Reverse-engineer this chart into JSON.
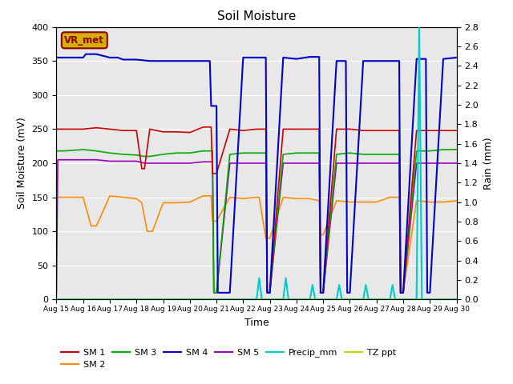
{
  "title": "Soil Moisture",
  "xlabel": "Time",
  "ylabel_left": "Soil Moisture (mV)",
  "ylabel_right": "Rain (mm)",
  "ylim_left": [
    0,
    400
  ],
  "ylim_right": [
    0.0,
    2.8
  ],
  "yticks_left": [
    0,
    50,
    100,
    150,
    200,
    250,
    300,
    350,
    400
  ],
  "yticks_right": [
    0.0,
    0.2,
    0.4,
    0.6,
    0.8,
    1.0,
    1.2,
    1.4,
    1.6,
    1.8,
    2.0,
    2.2,
    2.4,
    2.6,
    2.8
  ],
  "xtick_labels": [
    "Aug 15",
    "Aug 16",
    "Aug 17",
    "Aug 18",
    "Aug 19",
    "Aug 20",
    "Aug 21",
    "Aug 22",
    "Aug 23",
    "Aug 24",
    "Aug 25",
    "Aug 26",
    "Aug 27",
    "Aug 28",
    "Aug 29",
    "Aug 30"
  ],
  "background_color": "#e8e8e8",
  "legend_box_text": "VR_met",
  "legend_box_facecolor": "#d4b000",
  "legend_box_edgecolor": "#8B0000",
  "legend_box_textcolor": "#8B0000",
  "series": {
    "SM1": {
      "color": "#cc0000",
      "label": "SM 1",
      "x": [
        15.0,
        15.3,
        16.0,
        16.5,
        17.0,
        17.5,
        18.0,
        18.2,
        18.3,
        18.5,
        19.0,
        19.5,
        20.0,
        20.5,
        20.8,
        20.85,
        21.0,
        21.5,
        22.0,
        22.5,
        22.85,
        22.9,
        23.0,
        23.5,
        24.0,
        24.85,
        24.9,
        25.0,
        25.5,
        26.0,
        26.5,
        27.0,
        27.5,
        27.85,
        27.9,
        28.0,
        28.5,
        29.0,
        29.5,
        30.0
      ],
      "y": [
        250,
        250,
        250,
        252,
        250,
        248,
        248,
        192,
        192,
        250,
        246,
        246,
        245,
        253,
        253,
        185,
        185,
        250,
        248,
        250,
        250,
        10,
        10,
        250,
        250,
        250,
        10,
        10,
        250,
        250,
        248,
        248,
        248,
        248,
        10,
        10,
        248,
        248,
        248,
        248
      ]
    },
    "SM2": {
      "color": "#ff8c00",
      "label": "SM 2",
      "x": [
        15.0,
        15.3,
        16.0,
        16.3,
        16.5,
        17.0,
        17.5,
        18.0,
        18.2,
        18.4,
        18.6,
        19.0,
        19.5,
        20.0,
        20.5,
        20.8,
        20.85,
        21.0,
        21.5,
        22.0,
        22.5,
        22.6,
        22.85,
        22.9,
        23.0,
        23.5,
        24.0,
        24.5,
        24.85,
        24.9,
        25.0,
        25.5,
        26.0,
        26.5,
        27.0,
        27.5,
        27.85,
        27.9,
        28.0,
        28.5,
        29.0,
        29.5,
        30.0
      ],
      "y": [
        150,
        150,
        150,
        108,
        108,
        152,
        150,
        148,
        142,
        100,
        100,
        142,
        142,
        143,
        152,
        152,
        115,
        115,
        150,
        148,
        150,
        150,
        90,
        90,
        90,
        150,
        148,
        148,
        145,
        95,
        95,
        145,
        143,
        143,
        143,
        150,
        150,
        12,
        12,
        145,
        143,
        143,
        145
      ]
    },
    "SM3": {
      "color": "#00aa00",
      "label": "SM 3",
      "x": [
        15.0,
        15.3,
        16.0,
        16.5,
        17.0,
        17.5,
        18.0,
        18.3,
        18.5,
        19.0,
        19.5,
        20.0,
        20.5,
        20.85,
        20.9,
        21.0,
        21.5,
        22.0,
        22.5,
        22.85,
        22.9,
        23.0,
        23.5,
        24.0,
        24.85,
        24.9,
        25.0,
        25.5,
        26.0,
        26.5,
        27.0,
        27.5,
        27.85,
        27.9,
        28.0,
        28.5,
        29.0,
        29.5,
        30.0
      ],
      "y": [
        218,
        218,
        220,
        218,
        215,
        213,
        212,
        210,
        210,
        213,
        215,
        215,
        218,
        218,
        10,
        10,
        213,
        215,
        215,
        215,
        10,
        10,
        213,
        215,
        215,
        10,
        10,
        213,
        215,
        213,
        213,
        213,
        213,
        10,
        10,
        218,
        218,
        220,
        220
      ]
    },
    "SM4": {
      "color": "#0000cc",
      "label": "SM 4",
      "x": [
        15.0,
        15.1,
        15.5,
        16.0,
        16.1,
        16.5,
        17.0,
        17.3,
        17.5,
        18.0,
        18.5,
        19.0,
        19.5,
        20.0,
        20.5,
        20.75,
        20.8,
        20.85,
        21.0,
        21.05,
        21.2,
        21.5,
        22.0,
        22.5,
        22.85,
        22.9,
        23.0,
        23.5,
        24.0,
        24.5,
        24.85,
        24.9,
        25.0,
        25.5,
        25.85,
        25.9,
        26.0,
        26.5,
        27.0,
        27.5,
        27.85,
        27.9,
        28.0,
        28.5,
        28.85,
        28.9,
        29.0,
        29.5,
        30.0
      ],
      "y": [
        355,
        355,
        355,
        355,
        360,
        360,
        355,
        355,
        352,
        352,
        350,
        350,
        350,
        350,
        350,
        350,
        284,
        284,
        284,
        10,
        10,
        10,
        355,
        355,
        355,
        10,
        10,
        355,
        353,
        356,
        356,
        10,
        10,
        350,
        350,
        10,
        10,
        350,
        350,
        350,
        350,
        10,
        10,
        353,
        353,
        10,
        10,
        353,
        355
      ]
    },
    "SM5": {
      "color": "#9900bb",
      "label": "SM 5",
      "x": [
        15.0,
        15.05,
        15.5,
        16.0,
        16.5,
        17.0,
        17.5,
        18.0,
        18.3,
        18.5,
        19.0,
        19.5,
        20.0,
        20.5,
        20.85,
        20.9,
        21.0,
        21.5,
        22.0,
        22.5,
        22.85,
        22.9,
        23.0,
        23.5,
        24.0,
        24.85,
        24.9,
        25.0,
        25.5,
        26.0,
        26.5,
        27.0,
        27.5,
        27.85,
        27.9,
        28.0,
        28.5,
        29.0,
        29.5,
        30.0
      ],
      "y": [
        10,
        205,
        205,
        205,
        205,
        203,
        203,
        203,
        200,
        200,
        200,
        200,
        200,
        202,
        202,
        10,
        10,
        200,
        200,
        200,
        200,
        10,
        10,
        200,
        200,
        200,
        10,
        10,
        200,
        200,
        200,
        200,
        200,
        200,
        10,
        10,
        200,
        200,
        200,
        200
      ]
    },
    "Precip_mm": {
      "color": "#00cccc",
      "label": "Precip_mm",
      "x": [
        15.0,
        22.0,
        22.5,
        22.6,
        22.7,
        23.0,
        23.5,
        23.6,
        23.7,
        24.0,
        24.5,
        24.6,
        24.7,
        25.0,
        25.5,
        25.6,
        25.7,
        26.0,
        26.5,
        26.6,
        26.7,
        27.0,
        27.5,
        27.6,
        27.7,
        28.0,
        28.5,
        28.6,
        28.7,
        29.0,
        29.5,
        30.0
      ],
      "y": [
        0.0,
        0.0,
        0.0,
        0.22,
        0.0,
        0.0,
        0.0,
        0.22,
        0.0,
        0.0,
        0.0,
        0.15,
        0.0,
        0.0,
        0.0,
        0.15,
        0.0,
        0.0,
        0.0,
        0.15,
        0.0,
        0.0,
        0.0,
        0.15,
        0.0,
        0.0,
        0.0,
        2.8,
        0.0,
        0.0,
        0.0,
        0.0
      ]
    },
    "TZ_ppt": {
      "color": "#cccc00",
      "label": "TZ ppt",
      "x": [
        15.0,
        30.0
      ],
      "y": [
        0.0,
        0.0
      ]
    }
  }
}
